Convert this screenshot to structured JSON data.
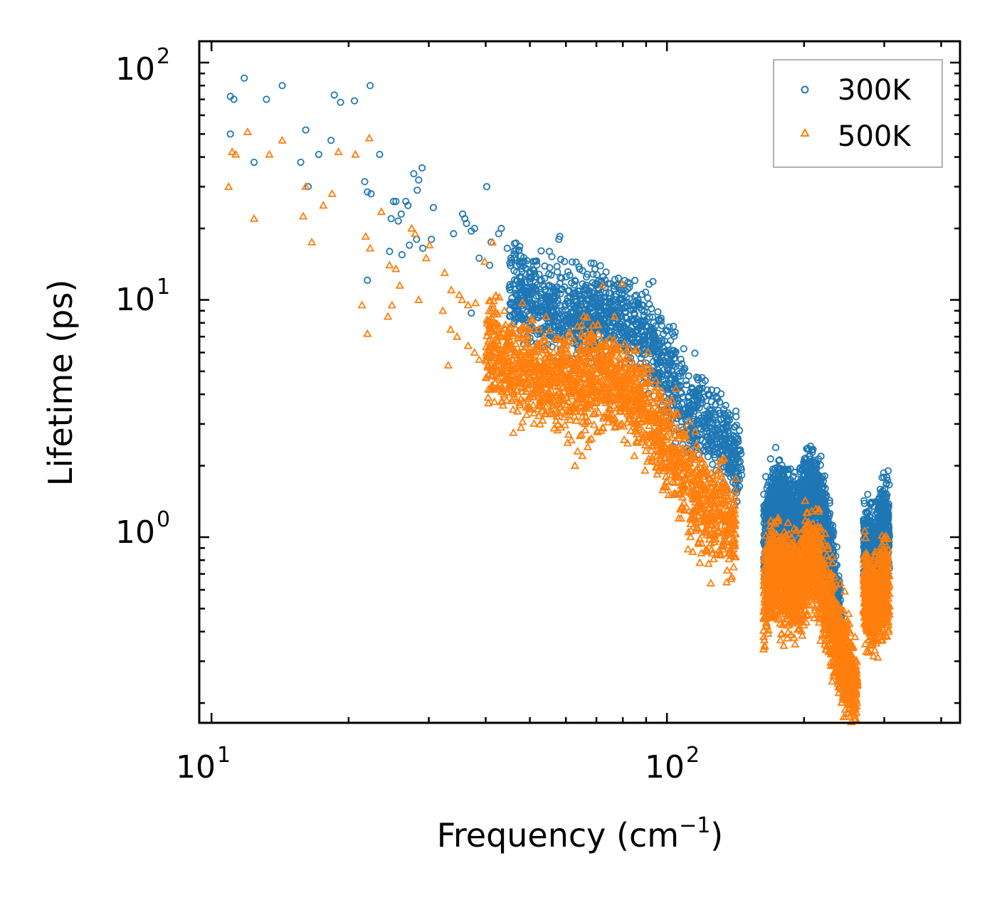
{
  "chart_data": {
    "type": "scatter",
    "title": "",
    "xlabel": "Frequency (cm",
    "xlabel_exp": "−1",
    "xlabel_close": ")",
    "ylabel": "Lifetime (ps)",
    "xscale": "log",
    "yscale": "log",
    "xlim": [
      9.4,
      440
    ],
    "ylim": [
      0.165,
      123
    ],
    "x_ticks": [
      {
        "base": "10",
        "exp": "1",
        "value": 10
      },
      {
        "base": "10",
        "exp": "2",
        "value": 100
      }
    ],
    "y_ticks": [
      {
        "base": "10",
        "exp": "0",
        "value": 1
      },
      {
        "base": "10",
        "exp": "1",
        "value": 10
      },
      {
        "base": "10",
        "exp": "2",
        "value": 100
      }
    ],
    "legend_position": "top-right",
    "series": [
      {
        "name": "300K",
        "marker": "circle",
        "color": "#1f77b4",
        "points": [
          [
            11.0,
            72
          ],
          [
            11.2,
            70
          ],
          [
            11.8,
            86
          ],
          [
            13.2,
            70
          ],
          [
            14.3,
            80
          ],
          [
            18.6,
            73
          ],
          [
            19.2,
            68
          ],
          [
            20.6,
            69
          ],
          [
            22.3,
            80
          ],
          [
            11.0,
            50
          ],
          [
            16.1,
            52
          ],
          [
            18.3,
            47
          ],
          [
            12.4,
            38
          ],
          [
            15.7,
            38
          ],
          [
            17.2,
            41
          ],
          [
            16.3,
            30
          ],
          [
            23.4,
            41
          ],
          [
            21.7,
            31.5
          ],
          [
            22.0,
            28.5
          ],
          [
            22.4,
            28
          ],
          [
            25.1,
            26
          ],
          [
            25.4,
            26
          ],
          [
            26.7,
            26
          ],
          [
            27.0,
            25
          ],
          [
            27.8,
            34
          ],
          [
            28.5,
            32
          ],
          [
            29.0,
            36
          ],
          [
            28.3,
            29
          ],
          [
            30.7,
            24.5
          ],
          [
            24.8,
            22
          ],
          [
            25.7,
            21.5
          ],
          [
            26.1,
            23
          ],
          [
            22.0,
            12.1
          ],
          [
            26.2,
            15.5
          ],
          [
            24.6,
            16
          ],
          [
            27.2,
            17
          ],
          [
            28.2,
            18
          ],
          [
            29.1,
            16.5
          ],
          [
            30.4,
            18
          ],
          [
            35.6,
            23
          ],
          [
            36.3,
            21
          ],
          [
            36.0,
            22
          ],
          [
            37.2,
            19.5
          ],
          [
            34.0,
            19
          ],
          [
            37.8,
            20
          ],
          [
            40.2,
            30
          ],
          [
            41.1,
            17.5
          ],
          [
            42.7,
            19
          ],
          [
            43.3,
            20
          ],
          [
            44.6,
            16.5
          ],
          [
            38.7,
            15
          ],
          [
            40.8,
            14
          ],
          [
            46.2,
            15
          ],
          [
            55.2,
            16
          ],
          [
            57.9,
            18
          ],
          [
            58.2,
            18.5
          ],
          [
            37.2,
            8.8
          ]
        ]
      },
      {
        "name": "500K",
        "marker": "triangle",
        "color": "#ff7f0e",
        "points": [
          [
            10.9,
            30
          ],
          [
            11.1,
            42
          ],
          [
            11.3,
            41
          ],
          [
            12.0,
            51
          ],
          [
            12.4,
            22
          ],
          [
            13.4,
            41
          ],
          [
            14.3,
            47
          ],
          [
            15.9,
            22.5
          ],
          [
            16.1,
            30
          ],
          [
            16.6,
            17.5
          ],
          [
            17.6,
            25
          ],
          [
            18.4,
            28
          ],
          [
            19.0,
            42
          ],
          [
            20.7,
            41
          ],
          [
            22.2,
            48
          ],
          [
            23.6,
            23.5
          ],
          [
            21.8,
            18.5
          ],
          [
            22.3,
            16.5
          ],
          [
            22.0,
            7.2
          ],
          [
            21.4,
            9.5
          ],
          [
            24.9,
            9.5
          ],
          [
            24.4,
            8.5
          ],
          [
            25.9,
            11.5
          ],
          [
            24.6,
            14
          ],
          [
            25.4,
            13.5
          ],
          [
            28.5,
            10
          ],
          [
            27.5,
            20
          ],
          [
            28.0,
            19
          ],
          [
            30.1,
            17
          ],
          [
            29.6,
            15
          ],
          [
            32.5,
            13
          ],
          [
            33.6,
            11
          ],
          [
            35.5,
            10
          ],
          [
            32.2,
            9
          ],
          [
            33.5,
            7.5
          ],
          [
            33.1,
            5.3
          ],
          [
            34.6,
            7
          ],
          [
            36.6,
            6.4
          ],
          [
            37.8,
            6.0
          ],
          [
            38.7,
            5.6
          ],
          [
            40.4,
            5.2
          ],
          [
            36.6,
            9.5
          ],
          [
            35.0,
            10.5
          ],
          [
            38.0,
            9.7
          ],
          [
            41.4,
            17.5
          ],
          [
            39.8,
            14.5
          ],
          [
            44.6,
            6.5
          ],
          [
            45.6,
            4.8
          ],
          [
            48.1,
            4.3
          ],
          [
            44.6,
            4.6
          ],
          [
            43.9,
            4.0
          ],
          [
            47.5,
            3.6
          ],
          [
            52.6,
            3.7
          ],
          [
            53.2,
            3.4
          ],
          [
            55.6,
            3.3
          ],
          [
            58.5,
            2.9
          ],
          [
            60.5,
            2.5
          ],
          [
            63.7,
            2.3
          ],
          [
            65.2,
            2.2
          ],
          [
            67.0,
            2.4
          ],
          [
            70.3,
            2.8
          ],
          [
            72.3,
            2.9
          ],
          [
            62.8,
            2.0
          ],
          [
            68.3,
            2.6
          ],
          [
            76.9,
            2.9
          ],
          [
            84.8,
            2.2
          ],
          [
            86.0,
            2.5
          ],
          [
            90.3,
            2.7
          ],
          [
            95.8,
            1.9
          ],
          [
            99.5,
            1.8
          ],
          [
            106.1,
            1.2
          ],
          [
            111.5,
            1.05
          ],
          [
            117.3,
            0.95
          ],
          [
            124.8,
            0.64
          ],
          [
            118.1,
            0.78
          ],
          [
            130.2,
            0.88
          ],
          [
            72.2,
            11.5
          ],
          [
            79.8,
            11.7
          ]
        ]
      }
    ]
  }
}
